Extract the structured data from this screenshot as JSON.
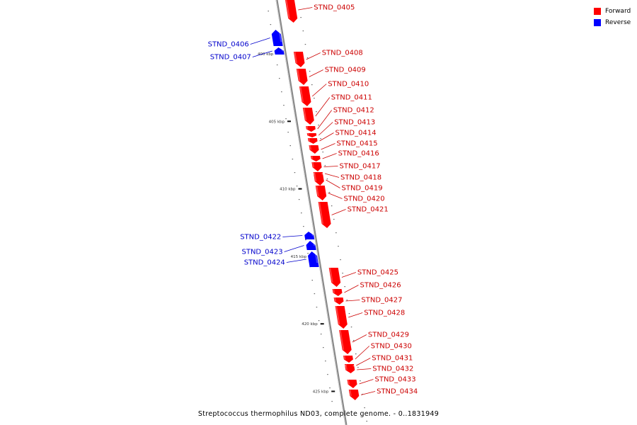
{
  "caption": "Streptococcus thermophilus ND03, complete genome. - 0..1831949",
  "legend": {
    "items": [
      {
        "label": "Forward",
        "color": "#ff0000"
      },
      {
        "label": "Reverse",
        "color": "#0000ff"
      }
    ]
  },
  "colors": {
    "forward": "#ff0000",
    "reverse": "#0000ff",
    "forward_label": "#cc0000",
    "reverse_label": "#0000cc",
    "backbone": "#888888"
  },
  "scale": {
    "unit": "kbp",
    "ticks": [
      {
        "kbp": 400,
        "label": "400 kbp"
      },
      {
        "kbp": 405,
        "label": "405 kbp"
      },
      {
        "kbp": 410,
        "label": "410 kbp"
      },
      {
        "kbp": 415,
        "label": "415 kbp"
      },
      {
        "kbp": 420,
        "label": "420 kbp"
      },
      {
        "kbp": 425,
        "label": "425 kbp"
      }
    ]
  },
  "genes": [
    {
      "label": "STND_0405",
      "strand": "forward"
    },
    {
      "label": "STND_0406",
      "strand": "reverse"
    },
    {
      "label": "STND_0407",
      "strand": "reverse"
    },
    {
      "label": "STND_0408",
      "strand": "forward"
    },
    {
      "label": "STND_0409",
      "strand": "forward"
    },
    {
      "label": "STND_0410",
      "strand": "forward"
    },
    {
      "label": "STND_0411",
      "strand": "forward"
    },
    {
      "label": "STND_0412",
      "strand": "forward"
    },
    {
      "label": "STND_0413",
      "strand": "forward"
    },
    {
      "label": "STND_0414",
      "strand": "forward"
    },
    {
      "label": "STND_0415",
      "strand": "forward"
    },
    {
      "label": "STND_0416",
      "strand": "forward"
    },
    {
      "label": "STND_0417",
      "strand": "forward"
    },
    {
      "label": "STND_0418",
      "strand": "forward"
    },
    {
      "label": "STND_0419",
      "strand": "forward"
    },
    {
      "label": "STND_0420",
      "strand": "forward"
    },
    {
      "label": "STND_0421",
      "strand": "forward"
    },
    {
      "label": "STND_0422",
      "strand": "reverse"
    },
    {
      "label": "STND_0423",
      "strand": "reverse"
    },
    {
      "label": "STND_0424",
      "strand": "reverse"
    },
    {
      "label": "STND_0425",
      "strand": "forward"
    },
    {
      "label": "STND_0426",
      "strand": "forward"
    },
    {
      "label": "STND_0427",
      "strand": "forward"
    },
    {
      "label": "STND_0428",
      "strand": "forward"
    },
    {
      "label": "STND_0429",
      "strand": "forward"
    },
    {
      "label": "STND_0430",
      "strand": "forward"
    },
    {
      "label": "STND_0431",
      "strand": "forward"
    },
    {
      "label": "STND_0432",
      "strand": "forward"
    },
    {
      "label": "STND_0433",
      "strand": "forward"
    },
    {
      "label": "STND_0434",
      "strand": "forward"
    }
  ]
}
